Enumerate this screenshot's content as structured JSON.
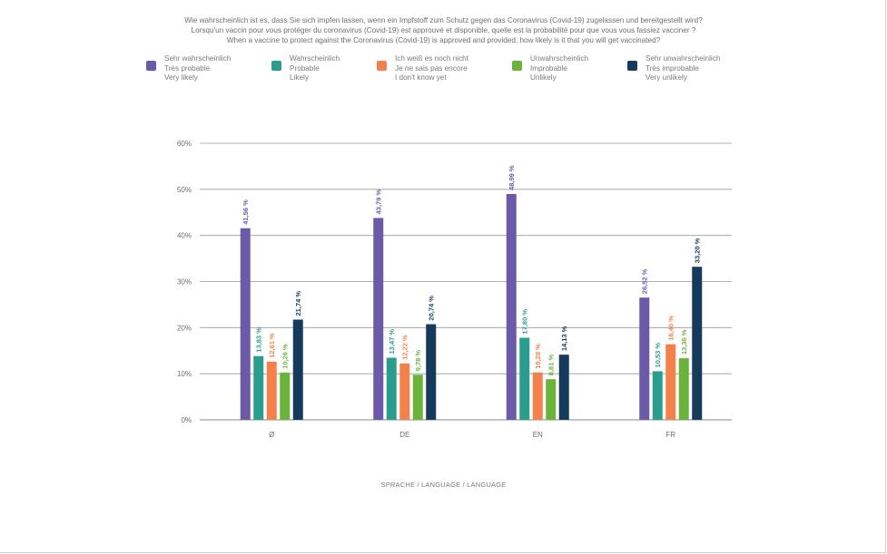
{
  "title_lines": [
    "Wie wahrscheinlich ist es, dass Sie sich impfen lassen, wenn ein Impfstoff zum Schutz gegen das Coronavirus (Covid-19) zugelassen und bereitgestellt wird?",
    "Lorsqu'un vaccin pour vous protéger du coronavirus (Covid-19) est approuvé et disponible, quelle est la probabilité pour que vous vous fassiez vacciner ?",
    "When a vaccine to protect against the Coronavirus (Covid-19) is approved and provided, how likely is it that you will get vaccinated?"
  ],
  "legend": [
    {
      "lines": [
        "Sehr wahrscheinlich",
        "Très probable",
        "Very likely"
      ],
      "color": "#6b5aa8"
    },
    {
      "lines": [
        "Wahrscheinlich",
        "Probable",
        "Likely"
      ],
      "color": "#2a9d8f"
    },
    {
      "lines": [
        "Ich weiß es noch nicht",
        "Je ne sais pas encore",
        "I don't know yet"
      ],
      "color": "#f4814b"
    },
    {
      "lines": [
        "Unwahrscheinlich",
        "Improbable",
        "Unlikely"
      ],
      "color": "#6bb33a"
    },
    {
      "lines": [
        "Sehr unwahrscheinlich",
        "Très improbable",
        "Very unlikely"
      ],
      "color": "#163a5c"
    }
  ],
  "chart_data": {
    "type": "bar",
    "categories": [
      "Ø",
      "DE",
      "EN",
      "FR"
    ],
    "xlabel": "SPRACHE / LANGUAGE / LANGUAGE",
    "ylabel": "",
    "ylim": [
      0,
      60
    ],
    "yticks": [
      0,
      10,
      20,
      30,
      40,
      50,
      60
    ],
    "ytick_labels": [
      "0%",
      "10%",
      "20%",
      "30%",
      "40%",
      "50%",
      "60%"
    ],
    "grid": true,
    "legend_position": "top",
    "series": [
      {
        "name": "Sehr wahrscheinlich / Très probable / Very likely",
        "color": "#6b5aa8",
        "values": [
          41.56,
          43.79,
          48.99,
          26.52
        ],
        "labels": [
          "41,56 %",
          "43,79 %",
          "48,99 %",
          "26,52 %"
        ]
      },
      {
        "name": "Wahrscheinlich / Probable / Likely",
        "color": "#2a9d8f",
        "values": [
          13.83,
          13.47,
          17.8,
          10.53
        ],
        "labels": [
          "13,83 %",
          "13,47 %",
          "17,80 %",
          "10,53 %"
        ]
      },
      {
        "name": "Ich weiß es noch nicht / Je ne sais pas encore / I don't know yet",
        "color": "#f4814b",
        "values": [
          12.61,
          12.22,
          10.28,
          16.4
        ],
        "labels": [
          "12,61 %",
          "12,22 %",
          "10,28 %",
          "16,40 %"
        ]
      },
      {
        "name": "Unwahrscheinlich / Improbable / Unlikely",
        "color": "#6bb33a",
        "values": [
          10.26,
          9.78,
          8.81,
          13.36
        ],
        "labels": [
          "10,26 %",
          "9,78 %",
          "8,81 %",
          "13,36 %"
        ]
      },
      {
        "name": "Sehr unwahrscheinlich / Très improbable / Very unlikely",
        "color": "#163a5c",
        "values": [
          21.74,
          20.74,
          14.13,
          33.2
        ],
        "labels": [
          "21,74 %",
          "20,74 %",
          "14,13 %",
          "33,20 %"
        ]
      }
    ]
  }
}
